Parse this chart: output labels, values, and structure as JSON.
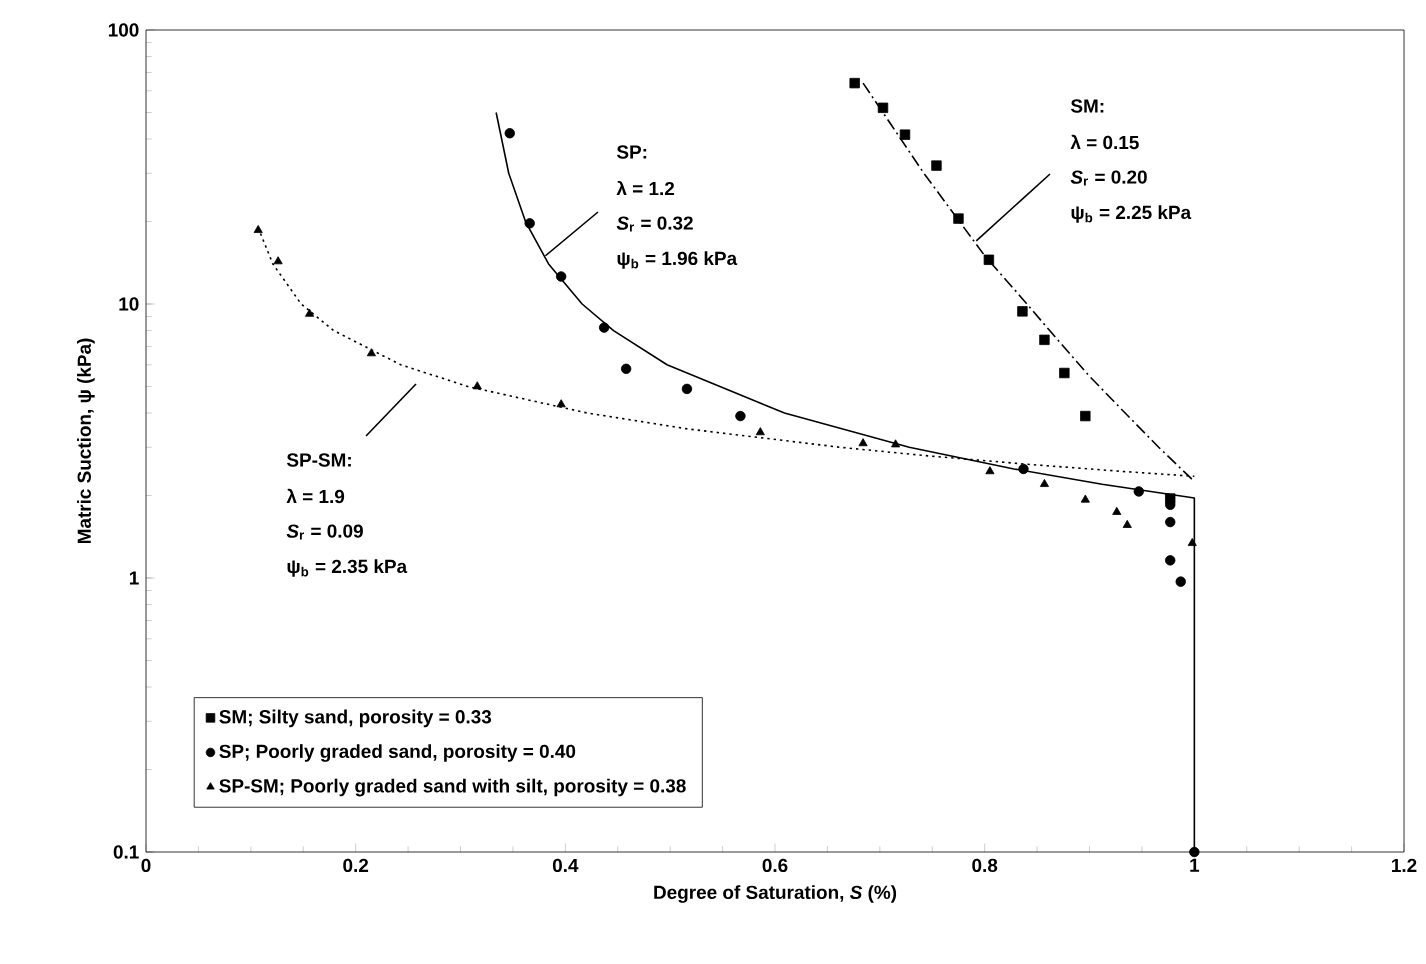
{
  "chart_data": {
    "type": "scatter",
    "xlabel": "Degree of Saturation, *S* (%)",
    "ylabel": "Matric Suction, ψ (kPa)",
    "xlim": [
      0,
      1.2
    ],
    "ylim": [
      0.1,
      100
    ],
    "log": "y",
    "xticks": [
      0,
      0.2,
      0.4,
      0.6,
      0.8,
      1,
      1.2
    ],
    "yticks": [
      0.1,
      1,
      10,
      100
    ],
    "legend": "bottom left",
    "series": [
      {
        "name": "SM; Silty sand, porosity = 0.33",
        "type": "scatter",
        "marker": "square",
        "color": "#000000",
        "x": [
          0.676,
          0.703,
          0.724,
          0.754,
          0.775,
          0.804,
          0.836,
          0.857,
          0.876,
          0.896,
          0.977
        ],
        "values": [
          64,
          52,
          41.5,
          32,
          20.5,
          14.5,
          9.4,
          7.4,
          5.6,
          3.9,
          1.95
        ]
      },
      {
        "name": "SP; Poorly graded sand, porosity = 0.40",
        "type": "scatter",
        "marker": "circle",
        "color": "#000000",
        "x": [
          0.347,
          0.366,
          0.396,
          0.437,
          0.458,
          0.516,
          0.567,
          0.837,
          0.947,
          0.977,
          0.977,
          0.977,
          0.987,
          1
        ],
        "values": [
          42,
          19.7,
          12.6,
          8.2,
          5.8,
          4.9,
          3.9,
          2.5,
          2.07,
          1.85,
          1.6,
          1.16,
          0.97,
          0.1
        ]
      },
      {
        "name": "SP-SM; Poorly graded sand with silt, porosity = 0.38",
        "type": "scatter",
        "marker": "triangle",
        "color": "#000000",
        "x": [
          0.107,
          0.126,
          0.156,
          0.215,
          0.316,
          0.396,
          0.586,
          0.684,
          0.715,
          0.805,
          0.857,
          0.896,
          0.926,
          0.936,
          0.998
        ],
        "values": [
          18.6,
          14.3,
          9.2,
          6.6,
          5.0,
          4.3,
          3.4,
          3.1,
          3.07,
          2.45,
          2.2,
          1.93,
          1.74,
          1.56,
          1.34
        ]
      },
      {
        "type": "line",
        "line_style": "solid",
        "color": "#000000",
        "x": [
          0.334,
          0.346,
          0.362,
          0.384,
          0.416,
          0.446,
          0.497,
          0.609,
          0.728,
          0.828,
          0.912,
          1,
          1
        ],
        "values": [
          50,
          30,
          20,
          14,
          10,
          8,
          6,
          4,
          3,
          2.5,
          2.2,
          1.96,
          0.1
        ]
      },
      {
        "type": "line",
        "line_style": "dashed",
        "color": "#000000",
        "x": [
          0.684,
          0.711,
          0.742,
          0.776,
          0.8,
          0.831,
          0.862,
          0.899,
          0.934,
          0.966,
          1
        ],
        "values": [
          64,
          45,
          30,
          20,
          15,
          11,
          8,
          5.5,
          4,
          3,
          2.25
        ]
      },
      {
        "type": "line",
        "line_style": "dotted",
        "color": "#000000",
        "x": [
          0.107,
          0.121,
          0.148,
          0.179,
          0.243,
          0.307,
          0.421,
          0.517,
          0.662,
          0.742,
          0.841,
          0.931,
          1
        ],
        "values": [
          19,
          14,
          10,
          8,
          6,
          5,
          4,
          3.5,
          3,
          2.8,
          2.6,
          2.45,
          2.35
        ]
      }
    ],
    "annotations": [
      "SP:",
      "λ = 1.2",
      {
        "text": "*S*$_{r}$ = 0.32",
        "x": 0.381,
        "y": 15
      },
      "ψ$_{b}$ = 1.96 kPa",
      "SM:",
      "λ = 0.15",
      {
        "text": "*S*$_{r}$ = 0.20",
        "x": 0.792,
        "y": 17
      },
      "ψ$_{b}$ = 2.25 kPa",
      "SP-SM:",
      "λ = 1.9",
      "*S*$_{r}$ = 0.09",
      "ψ$_{b}$ = 2.35 kPa"
    ]
  }
}
